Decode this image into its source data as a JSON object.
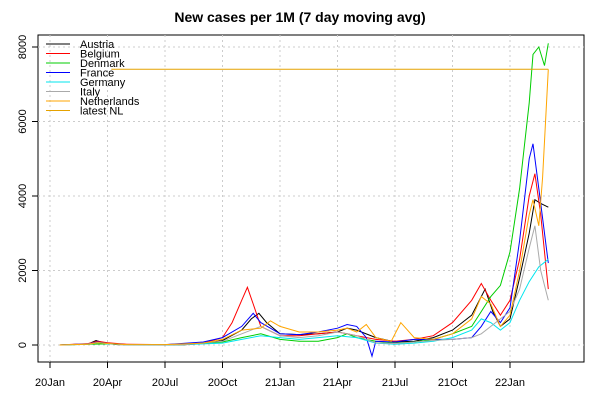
{
  "chart_data": {
    "type": "line",
    "title": "New cases per 1M (7 day moving avg)",
    "xlabel": "",
    "ylabel": "",
    "x_ticks": [
      "20Jan",
      "20Apr",
      "20Jul",
      "20Oct",
      "21Jan",
      "21Apr",
      "21Jul",
      "21Oct",
      "22Jan"
    ],
    "y_ticks": [
      "0",
      "2000",
      "4000",
      "6000",
      "8000"
    ],
    "ylim": [
      -300,
      8300
    ],
    "grid": true,
    "legend_position": "top-left",
    "series": [
      {
        "name": "Austria",
        "color": "#000000",
        "points": [
          [
            0.5,
            0
          ],
          [
            1,
            10
          ],
          [
            2,
            30
          ],
          [
            2.4,
            120
          ],
          [
            2.8,
            60
          ],
          [
            3.5,
            10
          ],
          [
            5,
            5
          ],
          [
            7,
            8
          ],
          [
            8,
            40
          ],
          [
            9,
            120
          ],
          [
            10,
            400
          ],
          [
            10.5,
            700
          ],
          [
            10.9,
            850
          ],
          [
            11.3,
            600
          ],
          [
            12,
            300
          ],
          [
            13,
            280
          ],
          [
            14,
            300
          ],
          [
            15,
            350
          ],
          [
            15.5,
            450
          ],
          [
            16,
            400
          ],
          [
            17,
            200
          ],
          [
            18,
            80
          ],
          [
            19,
            100
          ],
          [
            20,
            200
          ],
          [
            21,
            400
          ],
          [
            22,
            800
          ],
          [
            22.7,
            1500
          ],
          [
            23.1,
            900
          ],
          [
            23.5,
            500
          ],
          [
            24,
            700
          ],
          [
            24.5,
            1800
          ],
          [
            25,
            3000
          ],
          [
            25.3,
            3900
          ],
          [
            25.6,
            3800
          ],
          [
            26,
            3700
          ]
        ]
      },
      {
        "name": "Belgium",
        "color": "#ff0000",
        "points": [
          [
            0.5,
            0
          ],
          [
            2,
            40
          ],
          [
            2.5,
            100
          ],
          [
            3,
            60
          ],
          [
            4,
            20
          ],
          [
            6,
            10
          ],
          [
            8,
            50
          ],
          [
            9,
            200
          ],
          [
            9.5,
            600
          ],
          [
            10,
            1200
          ],
          [
            10.3,
            1550
          ],
          [
            10.6,
            1100
          ],
          [
            11,
            500
          ],
          [
            12,
            250
          ],
          [
            13,
            250
          ],
          [
            14,
            300
          ],
          [
            15,
            350
          ],
          [
            15.5,
            300
          ],
          [
            16,
            250
          ],
          [
            17,
            150
          ],
          [
            18,
            100
          ],
          [
            19,
            150
          ],
          [
            20,
            250
          ],
          [
            21,
            600
          ],
          [
            22,
            1200
          ],
          [
            22.5,
            1650
          ],
          [
            23,
            1200
          ],
          [
            23.5,
            800
          ],
          [
            24,
            1200
          ],
          [
            24.5,
            2300
          ],
          [
            25,
            4000
          ],
          [
            25.3,
            4600
          ],
          [
            25.6,
            3500
          ],
          [
            26,
            1500
          ]
        ]
      },
      {
        "name": "Denmark",
        "color": "#00cd00",
        "points": [
          [
            0.5,
            0
          ],
          [
            2,
            20
          ],
          [
            3,
            30
          ],
          [
            4,
            10
          ],
          [
            7,
            10
          ],
          [
            9,
            80
          ],
          [
            10,
            200
          ],
          [
            11,
            300
          ],
          [
            12,
            150
          ],
          [
            13,
            100
          ],
          [
            14,
            100
          ],
          [
            15,
            200
          ],
          [
            15.5,
            300
          ],
          [
            16,
            200
          ],
          [
            17,
            100
          ],
          [
            18,
            50
          ],
          [
            19,
            80
          ],
          [
            20,
            150
          ],
          [
            21,
            300
          ],
          [
            22,
            500
          ],
          [
            22.5,
            900
          ],
          [
            23,
            1300
          ],
          [
            23.5,
            1600
          ],
          [
            24,
            2500
          ],
          [
            24.5,
            4200
          ],
          [
            25,
            6500
          ],
          [
            25.2,
            7800
          ],
          [
            25.5,
            8000
          ],
          [
            25.8,
            7500
          ],
          [
            26,
            8100
          ]
        ]
      },
      {
        "name": "France",
        "color": "#0000ff",
        "points": [
          [
            0.5,
            0
          ],
          [
            2,
            30
          ],
          [
            2.5,
            80
          ],
          [
            3,
            40
          ],
          [
            4,
            10
          ],
          [
            6,
            10
          ],
          [
            8,
            80
          ],
          [
            9,
            200
          ],
          [
            10,
            500
          ],
          [
            10.6,
            850
          ],
          [
            11,
            600
          ],
          [
            12,
            300
          ],
          [
            13,
            280
          ],
          [
            14,
            350
          ],
          [
            15,
            450
          ],
          [
            15.5,
            550
          ],
          [
            16,
            500
          ],
          [
            16.5,
            200
          ],
          [
            16.8,
            -300
          ],
          [
            17,
            100
          ],
          [
            18,
            80
          ],
          [
            19,
            150
          ],
          [
            20,
            150
          ],
          [
            21,
            150
          ],
          [
            22,
            200
          ],
          [
            22.5,
            500
          ],
          [
            23,
            900
          ],
          [
            23.5,
            600
          ],
          [
            24,
            1000
          ],
          [
            24.5,
            2800
          ],
          [
            25,
            5000
          ],
          [
            25.2,
            5400
          ],
          [
            25.5,
            4200
          ],
          [
            26,
            2200
          ]
        ]
      },
      {
        "name": "Germany",
        "color": "#00e5ee",
        "points": [
          [
            0.5,
            0
          ],
          [
            2,
            20
          ],
          [
            2.5,
            60
          ],
          [
            3,
            30
          ],
          [
            4,
            5
          ],
          [
            7,
            10
          ],
          [
            9,
            50
          ],
          [
            10,
            150
          ],
          [
            11,
            250
          ],
          [
            12,
            200
          ],
          [
            13,
            150
          ],
          [
            14,
            200
          ],
          [
            15,
            250
          ],
          [
            16,
            200
          ],
          [
            17,
            50
          ],
          [
            18,
            20
          ],
          [
            19,
            50
          ],
          [
            20,
            100
          ],
          [
            21,
            200
          ],
          [
            22,
            400
          ],
          [
            22.5,
            700
          ],
          [
            23,
            600
          ],
          [
            23.5,
            400
          ],
          [
            24,
            600
          ],
          [
            24.5,
            1200
          ],
          [
            25,
            1700
          ],
          [
            25.5,
            2100
          ],
          [
            26,
            2300
          ]
        ]
      },
      {
        "name": "Italy",
        "color": "#aaaaaa",
        "points": [
          [
            0.5,
            0
          ],
          [
            2,
            30
          ],
          [
            2.5,
            70
          ],
          [
            3,
            40
          ],
          [
            4,
            5
          ],
          [
            7,
            10
          ],
          [
            9,
            100
          ],
          [
            10,
            300
          ],
          [
            11,
            500
          ],
          [
            12,
            250
          ],
          [
            13,
            200
          ],
          [
            14,
            250
          ],
          [
            15,
            350
          ],
          [
            16,
            250
          ],
          [
            17,
            60
          ],
          [
            18,
            40
          ],
          [
            19,
            80
          ],
          [
            20,
            120
          ],
          [
            21,
            150
          ],
          [
            22,
            200
          ],
          [
            22.5,
            300
          ],
          [
            23,
            500
          ],
          [
            23.5,
            700
          ],
          [
            24,
            900
          ],
          [
            24.5,
            1500
          ],
          [
            25,
            2600
          ],
          [
            25.3,
            3200
          ],
          [
            25.6,
            2000
          ],
          [
            26,
            1200
          ]
        ]
      },
      {
        "name": "Netherlands",
        "color": "#ffa500",
        "points": [
          [
            0.5,
            0
          ],
          [
            2,
            20
          ],
          [
            2.5,
            60
          ],
          [
            3,
            40
          ],
          [
            4,
            10
          ],
          [
            6,
            10
          ],
          [
            8,
            50
          ],
          [
            9,
            150
          ],
          [
            10,
            400
          ],
          [
            11,
            450
          ],
          [
            11.5,
            650
          ],
          [
            12,
            500
          ],
          [
            13,
            350
          ],
          [
            14,
            350
          ],
          [
            15,
            400
          ],
          [
            15.5,
            450
          ],
          [
            16,
            350
          ],
          [
            16.5,
            550
          ],
          [
            17,
            200
          ],
          [
            17.8,
            100
          ],
          [
            18.3,
            600
          ],
          [
            19,
            200
          ],
          [
            20,
            150
          ],
          [
            21,
            300
          ],
          [
            22,
            700
          ],
          [
            22.5,
            1300
          ],
          [
            23,
            1100
          ],
          [
            23.5,
            500
          ],
          [
            24,
            800
          ],
          [
            24.5,
            2000
          ],
          [
            25,
            3500
          ],
          [
            25.2,
            3900
          ],
          [
            25.5,
            3200
          ],
          [
            25.7,
            4500
          ],
          [
            26,
            7400
          ]
        ]
      },
      {
        "name": "latest NL",
        "color": "#e5a200",
        "points": [
          [
            3.2,
            7400
          ],
          [
            26,
            7400
          ]
        ]
      }
    ]
  }
}
